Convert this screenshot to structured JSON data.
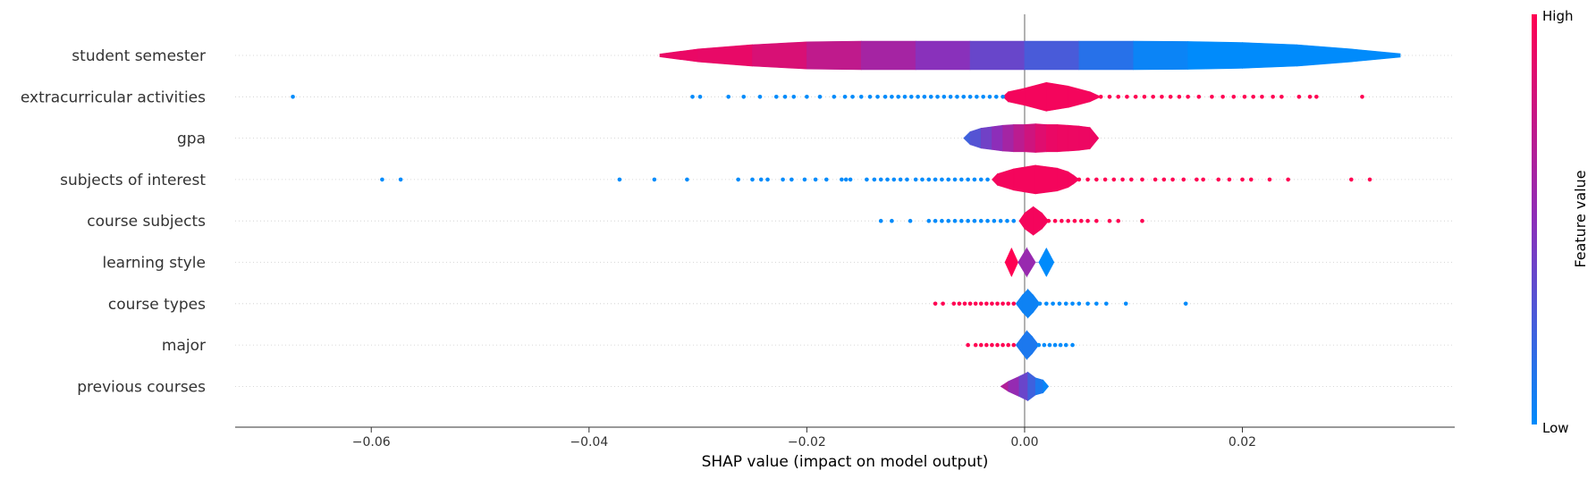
{
  "chart_data": {
    "type": "scatter",
    "subtype": "shap-violin-summary",
    "title": "",
    "xlabel": "SHAP value (impact on model output)",
    "xlim": [
      -0.0725,
      0.0395
    ],
    "xticks": [
      -0.06,
      -0.04,
      -0.02,
      0.0,
      0.02
    ],
    "xtick_labels": [
      "−0.06",
      "−0.04",
      "−0.02",
      "0.00",
      "0.02"
    ],
    "colorbar": {
      "title": "Feature value",
      "high_label": "High",
      "low_label": "Low",
      "high_color": "#ff0052",
      "low_color": "#008bfb"
    },
    "features": [
      {
        "name": "student semester",
        "violin": [
          [
            -0.0335,
            0.1,
            0.9
          ],
          [
            -0.03,
            0.45,
            0.92
          ],
          [
            -0.025,
            0.75,
            0.88
          ],
          [
            -0.02,
            0.95,
            0.78
          ],
          [
            -0.015,
            1.0,
            0.66
          ],
          [
            -0.01,
            1.0,
            0.55
          ],
          [
            -0.005,
            1.0,
            0.42
          ],
          [
            0.0,
            1.0,
            0.32
          ],
          [
            0.005,
            1.0,
            0.2
          ],
          [
            0.01,
            1.0,
            0.08
          ],
          [
            0.015,
            0.97,
            0.0
          ],
          [
            0.02,
            0.9,
            0.0
          ],
          [
            0.025,
            0.75,
            0.0
          ],
          [
            0.03,
            0.45,
            0.0
          ],
          [
            0.0345,
            0.12,
            0.0
          ]
        ],
        "points": []
      },
      {
        "name": "extracurricular activities",
        "violin": [
          [
            -0.002,
            0.0,
            0.95
          ],
          [
            -0.0015,
            0.35,
            0.95
          ],
          [
            0.0,
            0.6,
            0.95
          ],
          [
            0.002,
            1.0,
            0.95
          ],
          [
            0.004,
            0.75,
            0.95
          ],
          [
            0.006,
            0.35,
            0.95
          ],
          [
            0.007,
            0.0,
            0.95
          ]
        ],
        "points": [
          {
            "x": [
              -0.0672,
              -0.0305,
              -0.0298,
              -0.0272,
              -0.0258,
              -0.0243,
              -0.0228,
              -0.022,
              -0.0212,
              -0.02,
              -0.0188,
              -0.0175,
              -0.0165,
              -0.0158,
              -0.015,
              -0.0142,
              -0.0135,
              -0.0128,
              -0.0122,
              -0.0116,
              -0.011,
              -0.0104,
              -0.0098,
              -0.0092,
              -0.0086,
              -0.008,
              -0.0074,
              -0.0068,
              -0.0062,
              -0.0056,
              -0.005,
              -0.0044,
              -0.0038,
              -0.0032,
              -0.0026,
              -0.002
            ],
            "c": 0.0
          },
          {
            "x": [
              0.007,
              0.0078,
              0.0086,
              0.0094,
              0.0102,
              0.011,
              0.0118,
              0.0126,
              0.0134,
              0.0142,
              0.015,
              0.016,
              0.0172,
              0.0182,
              0.0192,
              0.0202,
              0.021,
              0.0218,
              0.0228,
              0.0236,
              0.0252,
              0.0262,
              0.0268,
              0.031
            ],
            "c": 1.0
          }
        ]
      },
      {
        "name": "gpa",
        "violin": [
          [
            -0.0056,
            0.0,
            0.2
          ],
          [
            -0.005,
            0.45,
            0.25
          ],
          [
            -0.004,
            0.7,
            0.35
          ],
          [
            -0.003,
            0.8,
            0.45
          ],
          [
            -0.002,
            0.9,
            0.55
          ],
          [
            -0.001,
            0.95,
            0.65
          ],
          [
            0.0,
            0.95,
            0.75
          ],
          [
            0.001,
            1.0,
            0.82
          ],
          [
            0.002,
            0.95,
            0.9
          ],
          [
            0.003,
            0.95,
            0.92
          ],
          [
            0.004,
            0.9,
            0.92
          ],
          [
            0.005,
            0.85,
            0.92
          ],
          [
            0.006,
            0.75,
            0.92
          ],
          [
            0.0068,
            0.0,
            0.92
          ]
        ],
        "points": []
      },
      {
        "name": "subjects of interest",
        "violin": [
          [
            -0.003,
            0.0,
            0.95
          ],
          [
            -0.0025,
            0.4,
            0.95
          ],
          [
            -0.001,
            0.75,
            0.95
          ],
          [
            0.001,
            1.0,
            0.95
          ],
          [
            0.003,
            0.8,
            0.95
          ],
          [
            0.004,
            0.55,
            0.95
          ],
          [
            0.0045,
            0.3,
            0.95
          ],
          [
            0.005,
            0.0,
            0.95
          ]
        ],
        "points": [
          {
            "x": [
              -0.059,
              -0.0573,
              -0.0372,
              -0.034,
              -0.031,
              -0.0263,
              -0.025,
              -0.0242,
              -0.0236,
              -0.0222,
              -0.0214,
              -0.0202,
              -0.0192,
              -0.0182,
              -0.0168,
              -0.0164,
              -0.016,
              -0.0145,
              -0.0138,
              -0.0132,
              -0.0126,
              -0.012,
              -0.0114,
              -0.0108,
              -0.01,
              -0.0094,
              -0.0088,
              -0.0082,
              -0.0076,
              -0.007,
              -0.0064,
              -0.0058,
              -0.0052,
              -0.0046,
              -0.004,
              -0.0034
            ],
            "c": 0.0
          },
          {
            "x": [
              0.005,
              0.0058,
              0.0066,
              0.0074,
              0.0082,
              0.009,
              0.0098,
              0.0108,
              0.012,
              0.0128,
              0.0136,
              0.0146,
              0.0158,
              0.0164,
              0.0178,
              0.0188,
              0.02,
              0.0208,
              0.0225,
              0.0242,
              0.03,
              0.0317
            ],
            "c": 1.0
          }
        ]
      },
      {
        "name": "course subjects",
        "violin": [
          [
            -0.0005,
            0.0,
            0.95
          ],
          [
            0.0,
            0.55,
            0.95
          ],
          [
            0.0008,
            1.0,
            0.95
          ],
          [
            0.0016,
            0.55,
            0.95
          ],
          [
            0.0022,
            0.0,
            0.95
          ]
        ],
        "points": [
          {
            "x": [
              -0.0132,
              -0.0122,
              -0.0105,
              -0.0088,
              -0.0082,
              -0.0076,
              -0.007,
              -0.0064,
              -0.0058,
              -0.0052,
              -0.0046,
              -0.004,
              -0.0034,
              -0.0028,
              -0.0022,
              -0.0016,
              -0.001
            ],
            "c": 0.0
          },
          {
            "x": [
              0.0022,
              0.0028,
              0.0034,
              0.004,
              0.0046,
              0.0052,
              0.0058,
              0.0066,
              0.0078,
              0.0086,
              0.0108
            ],
            "c": 1.0
          }
        ]
      },
      {
        "name": "learning style",
        "violin": [
          [
            -0.0018,
            0.0,
            1.0
          ],
          [
            -0.0012,
            1.0,
            1.0
          ],
          [
            -0.0006,
            0.0,
            1.0
          ],
          [
            -0.0006,
            0.0,
            0.55
          ],
          [
            0.0002,
            1.0,
            0.55
          ],
          [
            0.001,
            0.0,
            0.55
          ],
          [
            0.0013,
            0.0,
            0.0
          ],
          [
            0.002,
            1.0,
            0.0
          ],
          [
            0.0027,
            0.0,
            0.0
          ]
        ],
        "points": []
      },
      {
        "name": "course types",
        "violin": [
          [
            -0.0008,
            0.0,
            0.05
          ],
          [
            -0.0002,
            0.6,
            0.05
          ],
          [
            0.0003,
            1.0,
            0.05
          ],
          [
            0.0008,
            0.6,
            0.05
          ],
          [
            0.0014,
            0.0,
            0.05
          ]
        ],
        "points": [
          {
            "x": [
              -0.0082,
              -0.0075,
              -0.0065,
              -0.006,
              -0.0055,
              -0.005,
              -0.0045,
              -0.004,
              -0.0035,
              -0.003,
              -0.0025,
              -0.002,
              -0.0015,
              -0.001
            ],
            "c": 1.0
          },
          {
            "x": [
              0.0014,
              0.002,
              0.0026,
              0.0032,
              0.0038,
              0.0044,
              0.005,
              0.0058,
              0.0066,
              0.0075,
              0.0093,
              0.0148
            ],
            "c": 0.0
          }
        ]
      },
      {
        "name": "major",
        "violin": [
          [
            -0.0008,
            0.0,
            0.1
          ],
          [
            -0.0002,
            0.6,
            0.1
          ],
          [
            0.0002,
            1.0,
            0.1
          ],
          [
            0.0007,
            0.6,
            0.1
          ],
          [
            0.0013,
            0.0,
            0.1
          ]
        ],
        "points": [
          {
            "x": [
              -0.0052,
              -0.0045,
              -0.004,
              -0.0035,
              -0.003,
              -0.0025,
              -0.002,
              -0.0015,
              -0.001
            ],
            "c": 1.0
          },
          {
            "x": [
              0.0013,
              0.0018,
              0.0023,
              0.0028,
              0.0033,
              0.0038,
              0.0044
            ],
            "c": 0.0
          }
        ]
      },
      {
        "name": "previous courses",
        "violin": [
          [
            -0.0022,
            0.0,
            0.7
          ],
          [
            -0.0015,
            0.35,
            0.62
          ],
          [
            -0.0005,
            0.7,
            0.45
          ],
          [
            0.0003,
            1.0,
            0.3
          ],
          [
            0.001,
            0.6,
            0.15
          ],
          [
            0.0017,
            0.45,
            0.05
          ],
          [
            0.0022,
            0.0,
            0.0
          ]
        ],
        "points": []
      }
    ]
  }
}
